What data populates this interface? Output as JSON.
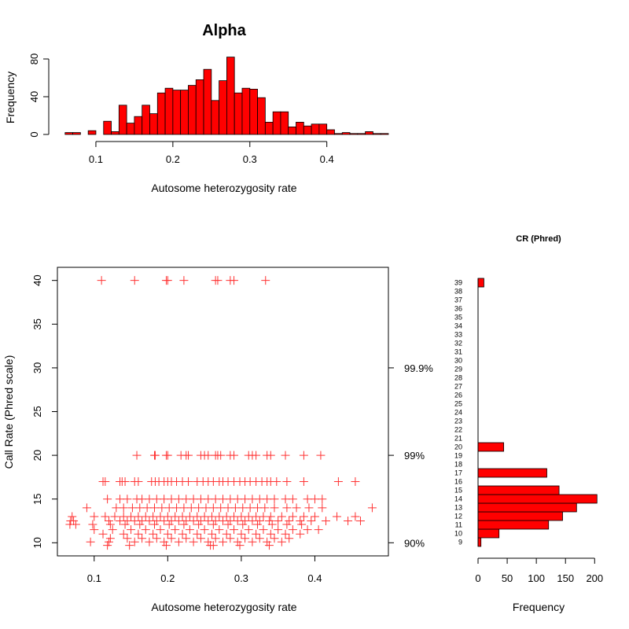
{
  "chart_data": [
    {
      "type": "bar",
      "title": "Alpha",
      "xlabel": "Autosome heterozygosity rate",
      "ylabel": "Frequency",
      "xlim": [
        0.05,
        0.48
      ],
      "ylim": [
        0,
        85
      ],
      "xticks": [
        "0.1",
        "0.2",
        "0.3",
        "0.4"
      ],
      "yticks": [
        "0",
        "40",
        "80"
      ],
      "bin_width": 0.01,
      "bins_start": [
        0.06,
        0.07,
        0.08,
        0.09,
        0.1,
        0.11,
        0.12,
        0.13,
        0.14,
        0.15,
        0.16,
        0.17,
        0.18,
        0.19,
        0.2,
        0.21,
        0.22,
        0.23,
        0.24,
        0.25,
        0.26,
        0.27,
        0.28,
        0.29,
        0.3,
        0.31,
        0.32,
        0.33,
        0.34,
        0.35,
        0.36,
        0.37,
        0.38,
        0.39,
        0.4,
        0.41,
        0.42,
        0.43,
        0.44,
        0.45,
        0.46,
        0.47
      ],
      "values": [
        2,
        2,
        0,
        4,
        0,
        14,
        3,
        31,
        12,
        19,
        31,
        22,
        44,
        49,
        47,
        47,
        52,
        58,
        69,
        36,
        57,
        82,
        44,
        49,
        48,
        39,
        13,
        24,
        24,
        8,
        13,
        9,
        11,
        11,
        5,
        1,
        2,
        1,
        1,
        3,
        1,
        1
      ],
      "color": "#ff0000"
    },
    {
      "type": "scatter",
      "xlabel": "Autosome heterozygosity rate",
      "ylabel": "Call Rate (Phred scale)",
      "xlim": [
        0.05,
        0.5
      ],
      "ylim": [
        8.5,
        41.5
      ],
      "xticks": [
        "0.1",
        "0.2",
        "0.3",
        "0.4"
      ],
      "yticks": [
        "10",
        "15",
        "20",
        "25",
        "30",
        "35",
        "40"
      ],
      "right_axis": [
        {
          "value": 10,
          "label": "90%"
        },
        {
          "value": 20,
          "label": "99%"
        },
        {
          "value": 30,
          "label": "99.9%"
        }
      ],
      "marker": "+",
      "color": "#ff3333",
      "points": [
        [
          0.11,
          40
        ],
        [
          0.155,
          40
        ],
        [
          0.198,
          40
        ],
        [
          0.2,
          40
        ],
        [
          0.222,
          40
        ],
        [
          0.265,
          40
        ],
        [
          0.268,
          40
        ],
        [
          0.285,
          40
        ],
        [
          0.29,
          40
        ],
        [
          0.333,
          40
        ],
        [
          0.158,
          20
        ],
        [
          0.182,
          20
        ],
        [
          0.183,
          20
        ],
        [
          0.198,
          20
        ],
        [
          0.2,
          20
        ],
        [
          0.218,
          20
        ],
        [
          0.225,
          20
        ],
        [
          0.228,
          20
        ],
        [
          0.245,
          20
        ],
        [
          0.25,
          20
        ],
        [
          0.255,
          20
        ],
        [
          0.265,
          20
        ],
        [
          0.268,
          20
        ],
        [
          0.272,
          20
        ],
        [
          0.285,
          20
        ],
        [
          0.29,
          20
        ],
        [
          0.31,
          20
        ],
        [
          0.315,
          20
        ],
        [
          0.32,
          20
        ],
        [
          0.335,
          20
        ],
        [
          0.34,
          20
        ],
        [
          0.36,
          20
        ],
        [
          0.385,
          20
        ],
        [
          0.408,
          20
        ],
        [
          0.112,
          17
        ],
        [
          0.115,
          17
        ],
        [
          0.135,
          17
        ],
        [
          0.138,
          17
        ],
        [
          0.142,
          17
        ],
        [
          0.155,
          17
        ],
        [
          0.16,
          17
        ],
        [
          0.178,
          17
        ],
        [
          0.183,
          17
        ],
        [
          0.188,
          17
        ],
        [
          0.195,
          17
        ],
        [
          0.2,
          17
        ],
        [
          0.205,
          17
        ],
        [
          0.212,
          17
        ],
        [
          0.22,
          17
        ],
        [
          0.228,
          17
        ],
        [
          0.24,
          17
        ],
        [
          0.248,
          17
        ],
        [
          0.255,
          17
        ],
        [
          0.262,
          17
        ],
        [
          0.27,
          17
        ],
        [
          0.275,
          17
        ],
        [
          0.282,
          17
        ],
        [
          0.29,
          17
        ],
        [
          0.298,
          17
        ],
        [
          0.305,
          17
        ],
        [
          0.312,
          17
        ],
        [
          0.32,
          17
        ],
        [
          0.328,
          17
        ],
        [
          0.335,
          17
        ],
        [
          0.34,
          17
        ],
        [
          0.348,
          17
        ],
        [
          0.362,
          17
        ],
        [
          0.385,
          17
        ],
        [
          0.432,
          17
        ],
        [
          0.455,
          17
        ],
        [
          0.118,
          15
        ],
        [
          0.135,
          15
        ],
        [
          0.145,
          15
        ],
        [
          0.158,
          15
        ],
        [
          0.165,
          15
        ],
        [
          0.175,
          15
        ],
        [
          0.185,
          15
        ],
        [
          0.195,
          15
        ],
        [
          0.205,
          15
        ],
        [
          0.215,
          15
        ],
        [
          0.225,
          15
        ],
        [
          0.235,
          15
        ],
        [
          0.245,
          15
        ],
        [
          0.255,
          15
        ],
        [
          0.265,
          15
        ],
        [
          0.275,
          15
        ],
        [
          0.285,
          15
        ],
        [
          0.295,
          15
        ],
        [
          0.305,
          15
        ],
        [
          0.315,
          15
        ],
        [
          0.325,
          15
        ],
        [
          0.335,
          15
        ],
        [
          0.345,
          15
        ],
        [
          0.36,
          15
        ],
        [
          0.37,
          15
        ],
        [
          0.39,
          15
        ],
        [
          0.4,
          15
        ],
        [
          0.41,
          15
        ],
        [
          0.09,
          14
        ],
        [
          0.13,
          14
        ],
        [
          0.14,
          14
        ],
        [
          0.152,
          14
        ],
        [
          0.162,
          14
        ],
        [
          0.172,
          14
        ],
        [
          0.182,
          14
        ],
        [
          0.192,
          14
        ],
        [
          0.202,
          14
        ],
        [
          0.212,
          14
        ],
        [
          0.222,
          14
        ],
        [
          0.232,
          14
        ],
        [
          0.242,
          14
        ],
        [
          0.252,
          14
        ],
        [
          0.262,
          14
        ],
        [
          0.272,
          14
        ],
        [
          0.282,
          14
        ],
        [
          0.292,
          14
        ],
        [
          0.302,
          14
        ],
        [
          0.312,
          14
        ],
        [
          0.322,
          14
        ],
        [
          0.332,
          14
        ],
        [
          0.345,
          14
        ],
        [
          0.362,
          14
        ],
        [
          0.375,
          14
        ],
        [
          0.392,
          14
        ],
        [
          0.41,
          14
        ],
        [
          0.478,
          14
        ],
        [
          0.07,
          13
        ],
        [
          0.1,
          13
        ],
        [
          0.115,
          13
        ],
        [
          0.128,
          13
        ],
        [
          0.14,
          13
        ],
        [
          0.15,
          13
        ],
        [
          0.16,
          13
        ],
        [
          0.17,
          13
        ],
        [
          0.18,
          13
        ],
        [
          0.19,
          13
        ],
        [
          0.2,
          13
        ],
        [
          0.21,
          13
        ],
        [
          0.22,
          13
        ],
        [
          0.23,
          13
        ],
        [
          0.24,
          13
        ],
        [
          0.25,
          13
        ],
        [
          0.26,
          13
        ],
        [
          0.27,
          13
        ],
        [
          0.28,
          13
        ],
        [
          0.29,
          13
        ],
        [
          0.3,
          13
        ],
        [
          0.31,
          13
        ],
        [
          0.32,
          13
        ],
        [
          0.33,
          13
        ],
        [
          0.34,
          13
        ],
        [
          0.355,
          13
        ],
        [
          0.37,
          13
        ],
        [
          0.385,
          13
        ],
        [
          0.4,
          13
        ],
        [
          0.43,
          13
        ],
        [
          0.455,
          13
        ],
        [
          0.068,
          12.5
        ],
        [
          0.072,
          12.5
        ],
        [
          0.12,
          12.5
        ],
        [
          0.135,
          12.5
        ],
        [
          0.145,
          12.5
        ],
        [
          0.155,
          12.5
        ],
        [
          0.165,
          12.5
        ],
        [
          0.175,
          12.5
        ],
        [
          0.185,
          12.5
        ],
        [
          0.195,
          12.5
        ],
        [
          0.205,
          12.5
        ],
        [
          0.215,
          12.5
        ],
        [
          0.225,
          12.5
        ],
        [
          0.235,
          12.5
        ],
        [
          0.245,
          12.5
        ],
        [
          0.255,
          12.5
        ],
        [
          0.265,
          12.5
        ],
        [
          0.275,
          12.5
        ],
        [
          0.285,
          12.5
        ],
        [
          0.295,
          12.5
        ],
        [
          0.305,
          12.5
        ],
        [
          0.315,
          12.5
        ],
        [
          0.325,
          12.5
        ],
        [
          0.338,
          12.5
        ],
        [
          0.35,
          12.5
        ],
        [
          0.365,
          12.5
        ],
        [
          0.38,
          12.5
        ],
        [
          0.395,
          12.5
        ],
        [
          0.415,
          12.5
        ],
        [
          0.445,
          12.5
        ],
        [
          0.462,
          12.5
        ],
        [
          0.067,
          12.1
        ],
        [
          0.075,
          12.1
        ],
        [
          0.098,
          12.1
        ],
        [
          0.122,
          12.1
        ],
        [
          0.142,
          12.1
        ],
        [
          0.162,
          12.1
        ],
        [
          0.182,
          12.1
        ],
        [
          0.202,
          12.1
        ],
        [
          0.222,
          12.1
        ],
        [
          0.242,
          12.1
        ],
        [
          0.262,
          12.1
        ],
        [
          0.282,
          12.1
        ],
        [
          0.302,
          12.1
        ],
        [
          0.322,
          12.1
        ],
        [
          0.342,
          12.1
        ],
        [
          0.362,
          12.1
        ],
        [
          0.382,
          12.1
        ],
        [
          0.1,
          11.5
        ],
        [
          0.125,
          11.5
        ],
        [
          0.15,
          11.5
        ],
        [
          0.17,
          11.5
        ],
        [
          0.19,
          11.5
        ],
        [
          0.21,
          11.5
        ],
        [
          0.23,
          11.5
        ],
        [
          0.25,
          11.5
        ],
        [
          0.27,
          11.5
        ],
        [
          0.29,
          11.5
        ],
        [
          0.31,
          11.5
        ],
        [
          0.33,
          11.5
        ],
        [
          0.35,
          11.5
        ],
        [
          0.37,
          11.5
        ],
        [
          0.39,
          11.5
        ],
        [
          0.405,
          11.5
        ],
        [
          0.112,
          11
        ],
        [
          0.14,
          11
        ],
        [
          0.16,
          11
        ],
        [
          0.18,
          11
        ],
        [
          0.2,
          11
        ],
        [
          0.22,
          11
        ],
        [
          0.24,
          11
        ],
        [
          0.26,
          11
        ],
        [
          0.28,
          11
        ],
        [
          0.3,
          11
        ],
        [
          0.32,
          11
        ],
        [
          0.34,
          11
        ],
        [
          0.36,
          11
        ],
        [
          0.38,
          11
        ],
        [
          0.122,
          10.5
        ],
        [
          0.145,
          10.5
        ],
        [
          0.165,
          10.5
        ],
        [
          0.185,
          10.5
        ],
        [
          0.205,
          10.5
        ],
        [
          0.225,
          10.5
        ],
        [
          0.245,
          10.5
        ],
        [
          0.265,
          10.5
        ],
        [
          0.285,
          10.5
        ],
        [
          0.305,
          10.5
        ],
        [
          0.325,
          10.5
        ],
        [
          0.345,
          10.5
        ],
        [
          0.365,
          10.5
        ],
        [
          0.095,
          10.1
        ],
        [
          0.12,
          10.1
        ],
        [
          0.155,
          10.1
        ],
        [
          0.175,
          10.1
        ],
        [
          0.195,
          10.1
        ],
        [
          0.215,
          10.1
        ],
        [
          0.235,
          10.1
        ],
        [
          0.255,
          10.1
        ],
        [
          0.275,
          10.1
        ],
        [
          0.295,
          10.1
        ],
        [
          0.315,
          10.1
        ],
        [
          0.335,
          10.1
        ],
        [
          0.355,
          10.1
        ],
        [
          0.118,
          9.7
        ],
        [
          0.148,
          9.7
        ],
        [
          0.198,
          9.7
        ],
        [
          0.258,
          9.7
        ],
        [
          0.262,
          9.7
        ],
        [
          0.298,
          9.7
        ],
        [
          0.338,
          9.7
        ]
      ]
    },
    {
      "type": "bar",
      "orientation": "horizontal",
      "title": "CR (Phred)",
      "xlabel": "Frequency",
      "xlim": [
        0,
        205
      ],
      "xticks": [
        "0",
        "50",
        "100",
        "150",
        "200"
      ],
      "categories": [
        "9",
        "10",
        "11",
        "12",
        "13",
        "14",
        "15",
        "16",
        "17",
        "18",
        "19",
        "20",
        "21",
        "22",
        "23",
        "24",
        "25",
        "26",
        "27",
        "28",
        "29",
        "30",
        "31",
        "32",
        "33",
        "34",
        "35",
        "36",
        "37",
        "38",
        "39"
      ],
      "values": [
        5,
        36,
        121,
        145,
        169,
        204,
        139,
        0,
        118,
        0,
        0,
        44,
        0,
        0,
        0,
        0,
        0,
        0,
        0,
        0,
        0,
        0,
        0,
        0,
        0,
        0,
        0,
        0,
        0,
        0,
        10
      ],
      "color": "#ff0000"
    }
  ]
}
